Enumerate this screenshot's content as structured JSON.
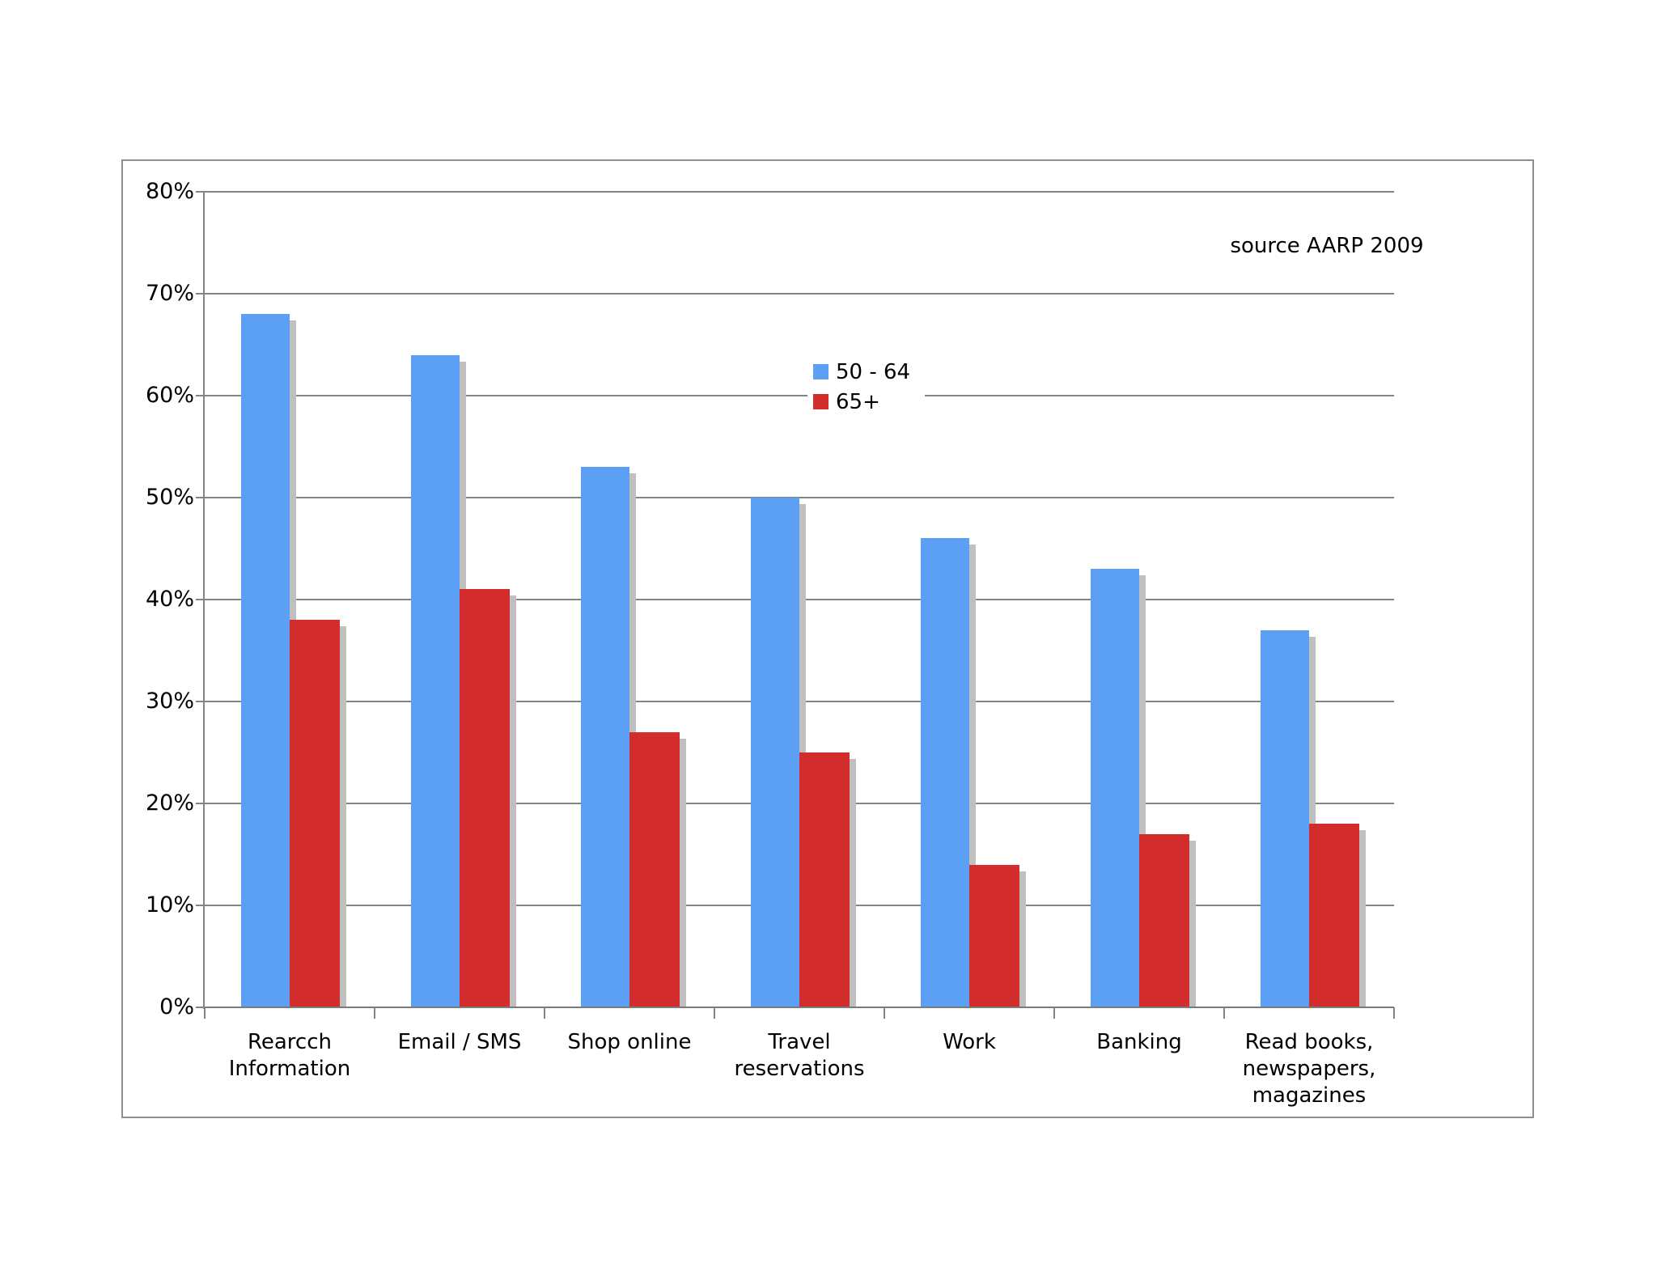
{
  "chart_data": {
    "type": "bar",
    "title": "",
    "xlabel": "",
    "ylabel": "",
    "categories": [
      "Rearcch\nInformation",
      "Email / SMS",
      "Shop online",
      "Travel\nreservations",
      "Work",
      "Banking",
      "Read books,\nnewspapers,\nmagazines"
    ],
    "series": [
      {
        "name": "50 - 64",
        "color": "#5BA0F5",
        "values": [
          68,
          64,
          53,
          50,
          46,
          43,
          37
        ]
      },
      {
        "name": "65+",
        "color": "#D32C2C",
        "values": [
          38,
          41,
          27,
          25,
          14,
          17,
          18
        ]
      }
    ],
    "ylim": [
      0,
      80
    ],
    "yticks": [
      "0%",
      "10%",
      "20%",
      "30%",
      "40%",
      "50%",
      "60%",
      "70%",
      "80%"
    ],
    "grid": true,
    "legend_position": "inside-top-center",
    "annotation": "source AARP 2009",
    "colors": {
      "bar_shadow": "#C0C0C0",
      "gridline": "#848484",
      "frame_border": "#8F8F8F",
      "text": "#000000",
      "background": "#FFFFFF"
    }
  }
}
